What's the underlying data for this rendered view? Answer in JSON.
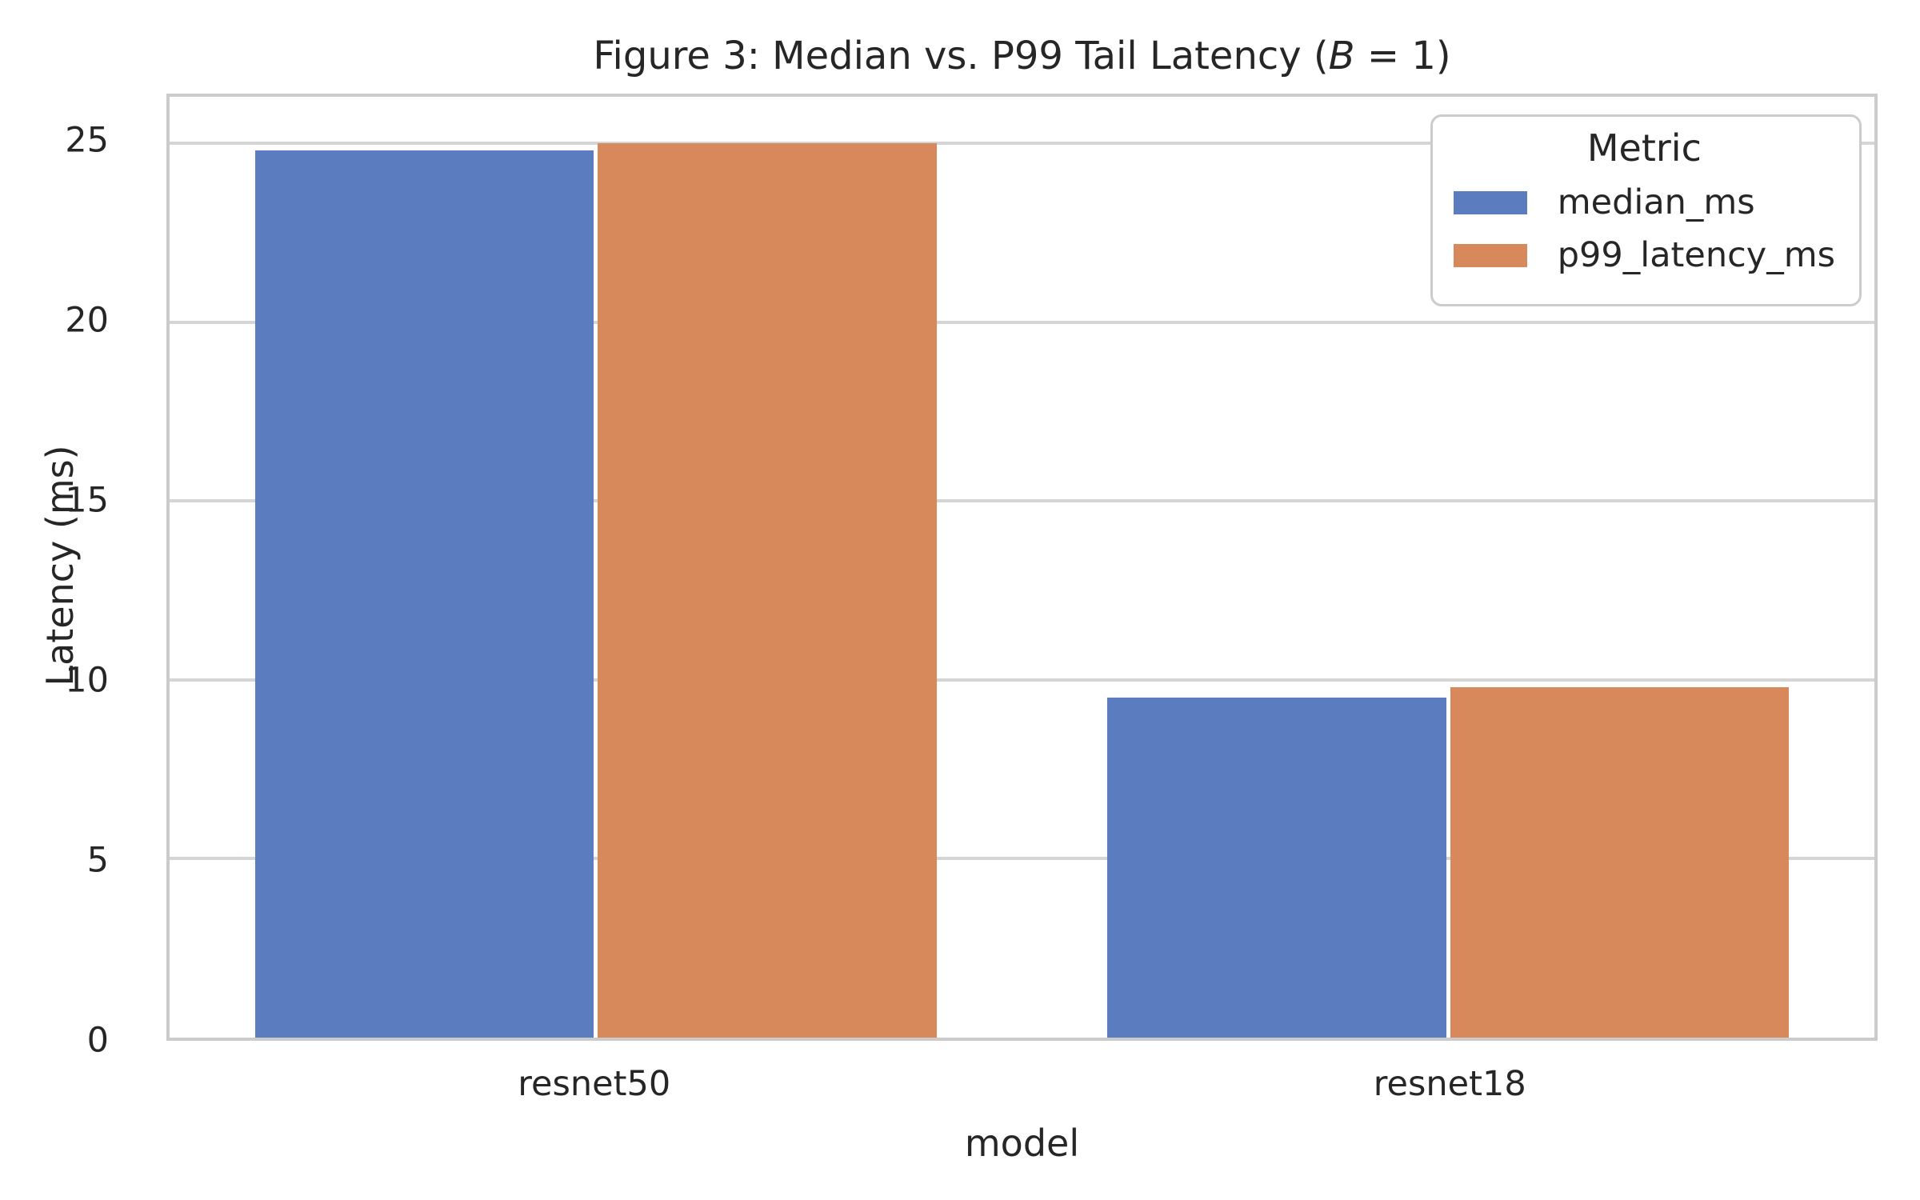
{
  "figure": {
    "title_prefix": "Figure 3: Median vs. P99 Tail Latency (",
    "title_var": "B",
    "title_suffix": " = 1)"
  },
  "chart_data": {
    "type": "bar",
    "title": "Figure 3: Median vs. P99 Tail Latency (B = 1)",
    "categories": [
      "resnet50",
      "resnet18"
    ],
    "series": [
      {
        "name": "median_ms",
        "color": "#5B7CBE",
        "values": [
          24.8,
          9.5
        ]
      },
      {
        "name": "p99_latency_ms",
        "color": "#D8895C",
        "values": [
          25.0,
          9.8
        ]
      }
    ],
    "xlabel": "model",
    "ylabel": "Latency (ms)",
    "ylim": [
      0,
      26.3
    ],
    "yticks": [
      0,
      5,
      10,
      15,
      20,
      25
    ],
    "grid": true,
    "legend_title": "Metric",
    "legend_position": "upper right"
  },
  "colors": {
    "grid": "#D5D5D5",
    "spine": "#CBCBCB",
    "text": "#262626"
  }
}
